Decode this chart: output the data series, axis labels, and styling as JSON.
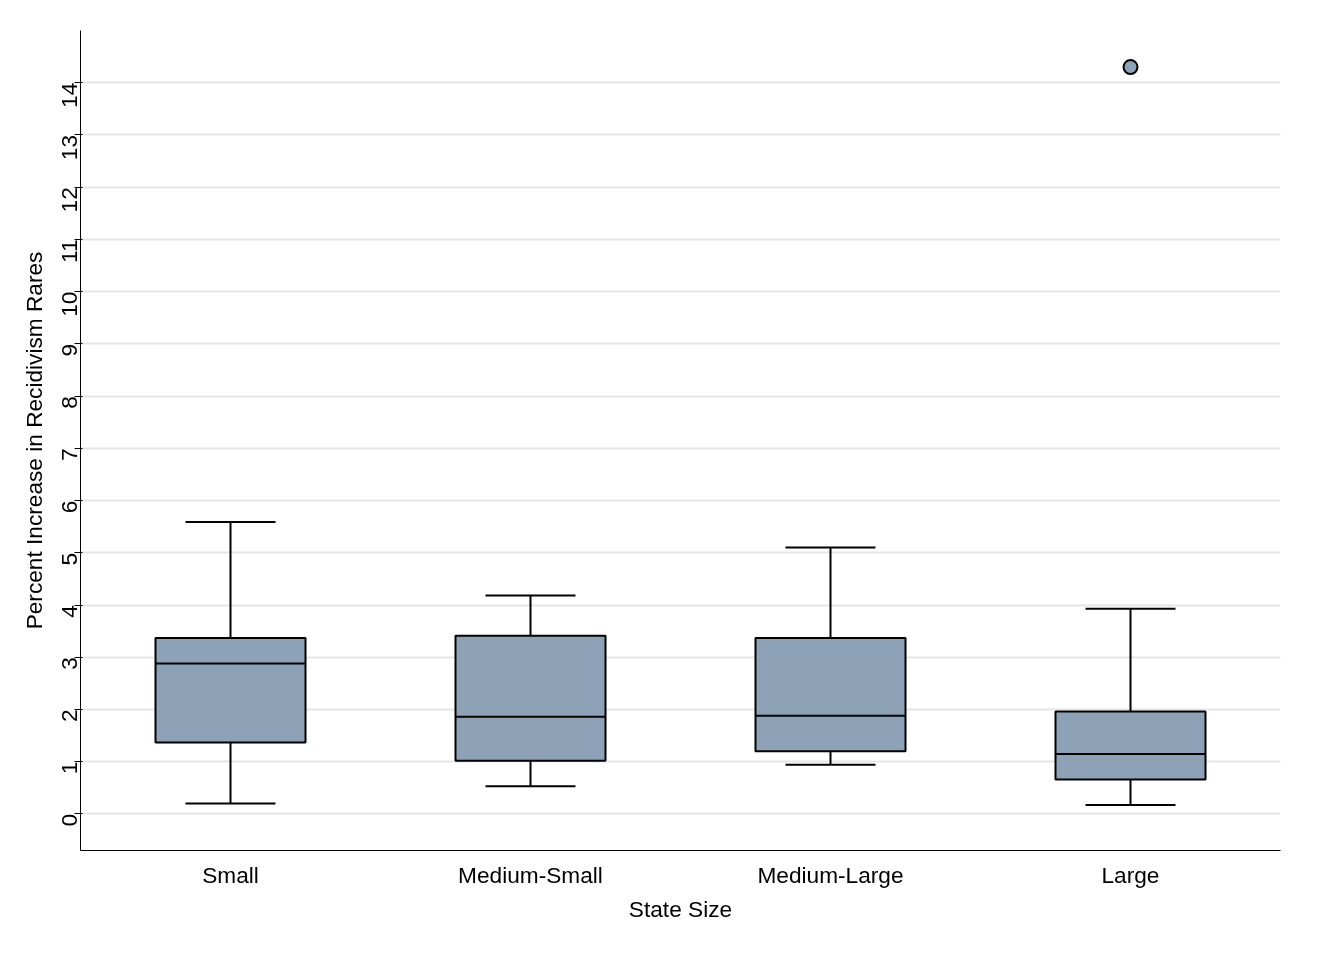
{
  "chart_data": {
    "type": "box",
    "xlabel": "State Size",
    "ylabel": "Percent Increase in Recidivism Rares",
    "categories": [
      "Small",
      "Medium-Small",
      "Medium-Large",
      "Large"
    ],
    "series": [
      {
        "color": "#8da2b6",
        "boxes": [
          {
            "low": 0.2,
            "q1": 1.37,
            "median": 2.88,
            "q3": 3.37,
            "high": 5.59
          },
          {
            "low": 0.53,
            "q1": 1.02,
            "median": 1.86,
            "q3": 3.41,
            "high": 4.18
          },
          {
            "low": 0.94,
            "q1": 1.2,
            "median": 1.88,
            "q3": 3.37,
            "high": 5.1
          },
          {
            "low": 0.17,
            "q1": 0.66,
            "median": 1.15,
            "q3": 1.96,
            "high": 3.93,
            "outliers": [
              14.3
            ]
          }
        ]
      }
    ],
    "ylim": [
      -0.7,
      15
    ],
    "yticks": [
      0,
      1,
      2,
      3,
      4,
      5,
      6,
      7,
      8,
      9,
      10,
      11,
      12,
      13,
      14
    ],
    "grid": "y"
  }
}
